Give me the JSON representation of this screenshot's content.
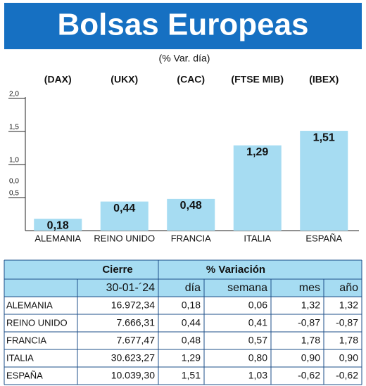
{
  "chart_data": {
    "type": "bar",
    "title": "Bolsas Europeas",
    "subtitle": "(% Var. día)",
    "tickers": [
      "(DAX)",
      "(UKX)",
      "(CAC)",
      "(FTSE MIB)",
      "(IBEX)"
    ],
    "categories": [
      "ALEMANIA",
      "REINO UNIDO",
      "FRANCIA",
      "ITALIA",
      "ESPAÑA"
    ],
    "values": [
      0.18,
      0.44,
      0.48,
      1.29,
      1.51
    ],
    "value_labels": [
      "0,18",
      "0,44",
      "0,48",
      "1,29",
      "1,51"
    ],
    "color": "#a6dcf2",
    "ylim": [
      0,
      2
    ],
    "yticks": [
      {
        "value": 0.5,
        "label": "0,5"
      },
      {
        "value": 1,
        "label": "1,0"
      },
      {
        "value": 1.5,
        "label": "1,5"
      },
      {
        "value": 2,
        "label": "2,0"
      }
    ],
    "annotations": [
      "0,0"
    ]
  },
  "table": {
    "header_groups": [
      "Cierre",
      "% Variación"
    ],
    "columns": [
      "30-01-´24",
      "día",
      "semana",
      "mes",
      "año"
    ],
    "rows": [
      [
        "ALEMANIA",
        "16.972,34",
        "0,18",
        "0,06",
        "1,32",
        "1,32"
      ],
      [
        "REINO UNIDO",
        "7.666,31",
        "0,44",
        "0,41",
        "-0,87",
        "-0,87"
      ],
      [
        "FRANCIA",
        "7.677,47",
        "0,48",
        "0,57",
        "1,78",
        "1,78"
      ],
      [
        "ITALIA",
        "30.623,27",
        "1,29",
        "0,80",
        "0,90",
        "0,90"
      ],
      [
        "ESPAÑA",
        "10.039,30",
        "1,51",
        "1,03",
        "-0,62",
        "-0,62"
      ]
    ]
  }
}
